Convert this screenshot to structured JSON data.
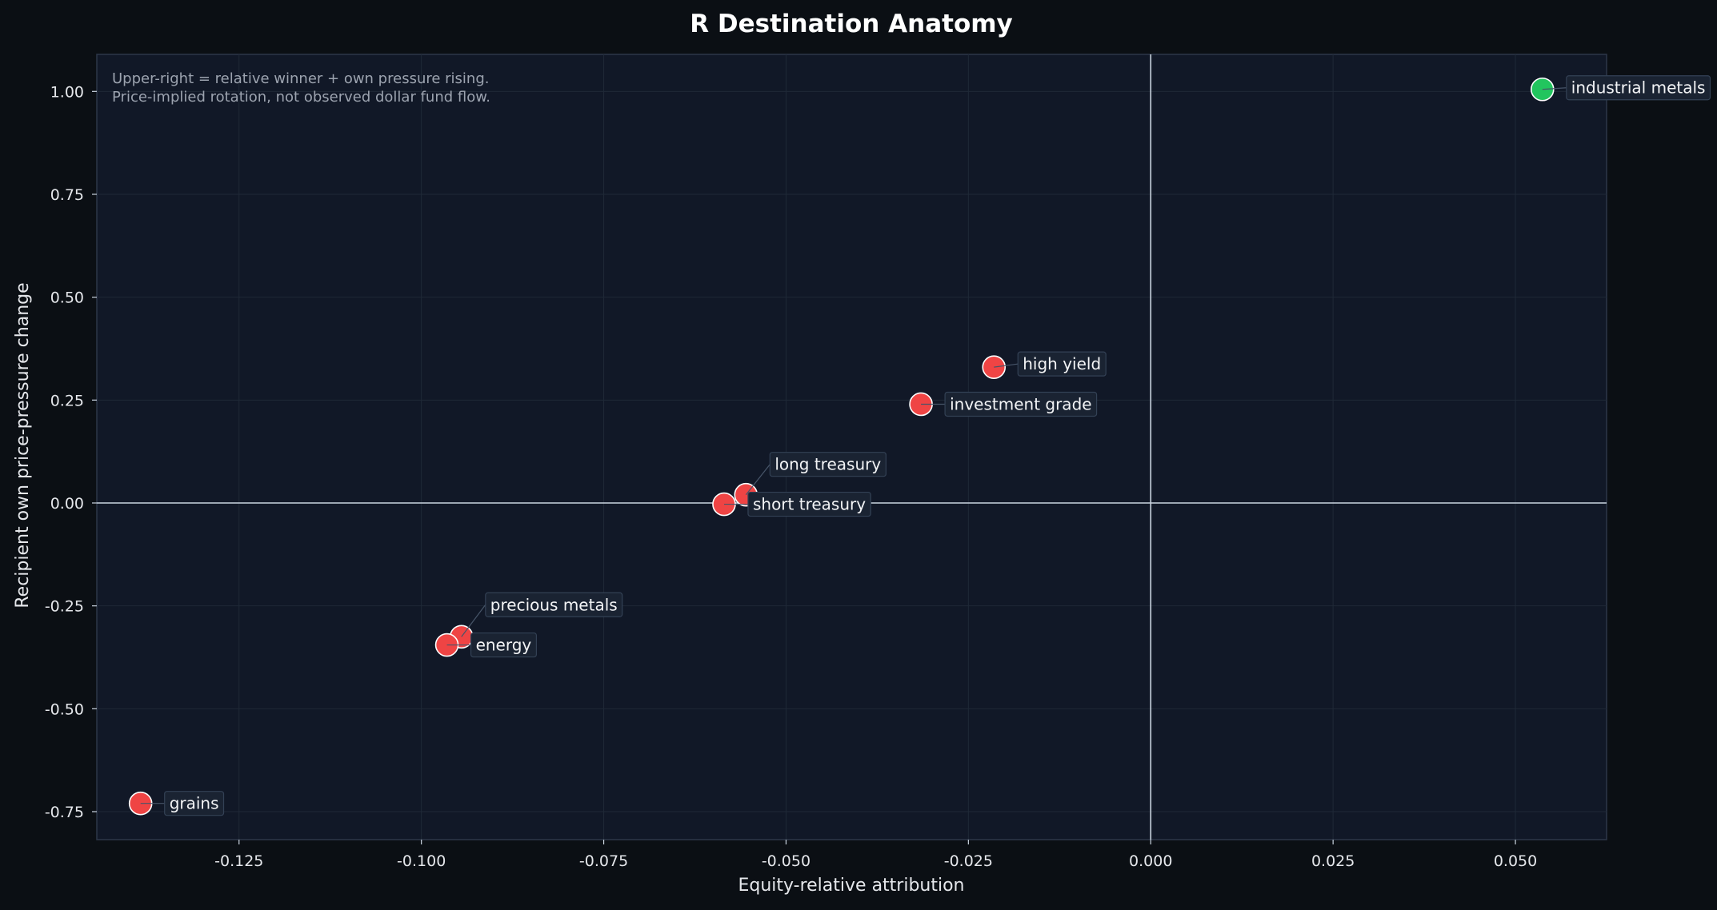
{
  "chart_data": {
    "type": "scatter",
    "title": "R Destination Anatomy",
    "xlabel": "Equity-relative attribution",
    "ylabel": "Recipient own price-pressure change",
    "xlim": [
      -0.1445,
      0.0625
    ],
    "ylim": [
      -0.818,
      1.09
    ],
    "xticks": [
      {
        "value": -0.125,
        "label": "-0.125"
      },
      {
        "value": -0.1,
        "label": "-0.100"
      },
      {
        "value": -0.075,
        "label": "-0.075"
      },
      {
        "value": -0.05,
        "label": "-0.050"
      },
      {
        "value": -0.025,
        "label": "-0.025"
      },
      {
        "value": 0.0,
        "label": "0.000"
      },
      {
        "value": 0.025,
        "label": "0.025"
      },
      {
        "value": 0.05,
        "label": "0.050"
      }
    ],
    "yticks": [
      {
        "value": 1.0,
        "label": "1.00"
      },
      {
        "value": 0.75,
        "label": "0.75"
      },
      {
        "value": 0.5,
        "label": "0.50"
      },
      {
        "value": 0.25,
        "label": "0.25"
      },
      {
        "value": 0.0,
        "label": "0.00"
      },
      {
        "value": -0.25,
        "label": "-0.25"
      },
      {
        "value": -0.5,
        "label": "-0.50"
      },
      {
        "value": -0.75,
        "label": "-0.75"
      }
    ],
    "grid": true,
    "reference_lines": {
      "x": 0,
      "y": 0
    },
    "annotation": [
      "Upper-right = relative winner + own pressure rising.",
      "Price-implied rotation, not observed dollar fund flow."
    ],
    "colors": {
      "negative": "#ef4444",
      "positive": "#22c55e",
      "background": "#0b0f14",
      "plot_background": "#111827"
    },
    "points": [
      {
        "label": "industrial metals",
        "x": 0.0537,
        "y": 1.005,
        "color": "#22c55e"
      },
      {
        "label": "high yield",
        "x": -0.0215,
        "y": 0.33,
        "color": "#ef4444"
      },
      {
        "label": "investment grade",
        "x": -0.0315,
        "y": 0.24,
        "color": "#ef4444"
      },
      {
        "label": "long treasury",
        "x": -0.0555,
        "y": 0.02,
        "color": "#ef4444"
      },
      {
        "label": "short treasury",
        "x": -0.0585,
        "y": -0.003,
        "color": "#ef4444"
      },
      {
        "label": "precious metals",
        "x": -0.0945,
        "y": -0.325,
        "color": "#ef4444"
      },
      {
        "label": "energy",
        "x": -0.0965,
        "y": -0.345,
        "color": "#ef4444"
      },
      {
        "label": "grains",
        "x": -0.1385,
        "y": -0.73,
        "color": "#ef4444"
      }
    ]
  }
}
